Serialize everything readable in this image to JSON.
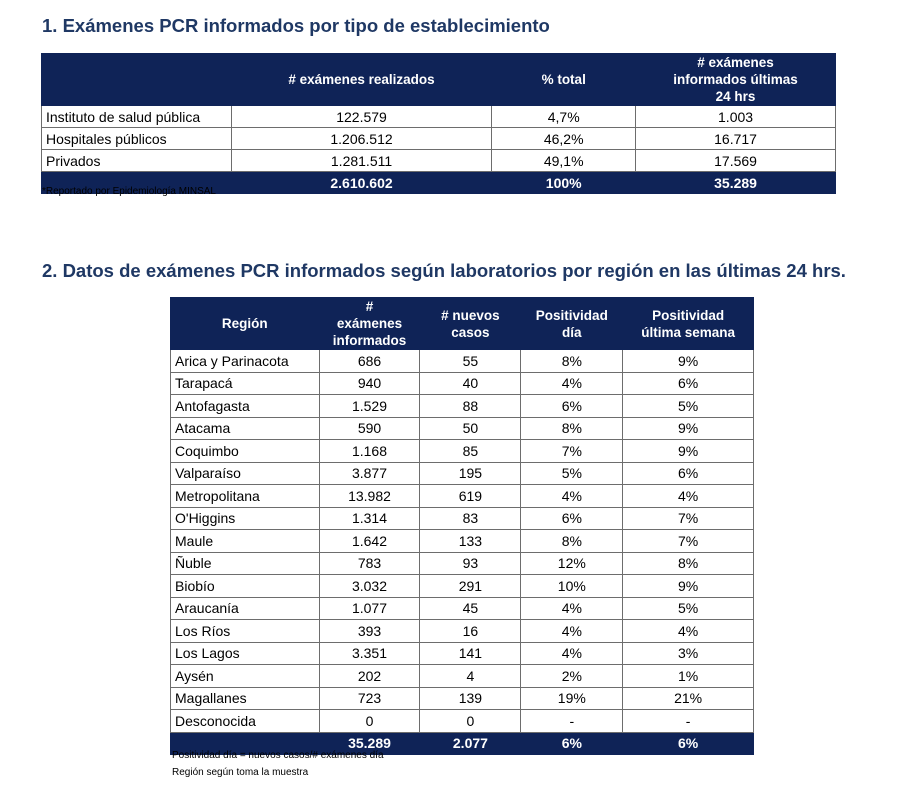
{
  "section1": {
    "title": "1.  Exámenes PCR informados por tipo de establecimiento",
    "headers": [
      "",
      "# exámenes realizados",
      "% total",
      "# exámenes informados últimas 24 hrs"
    ],
    "rows": [
      {
        "label": "Instituto de salud pública",
        "realizados": "122.579",
        "pct": "4,7%",
        "ultimas24": "1.003"
      },
      {
        "label": "Hospitales públicos",
        "realizados": "1.206.512",
        "pct": "46,2%",
        "ultimas24": "16.717"
      },
      {
        "label": "Privados",
        "realizados": "1.281.511",
        "pct": "49,1%",
        "ultimas24": "17.569"
      }
    ],
    "total": {
      "label": "",
      "realizados": "2.610.602",
      "pct": "100%",
      "ultimas24": "35.289"
    },
    "note": "*Reportado por Epidemiología MINSAL"
  },
  "section2": {
    "title": "2.  Datos de exámenes PCR informados según laboratorios por región en las últimas 24 hrs.",
    "headers": [
      "Región",
      "# exámenes informados",
      "# nuevos casos",
      "Positividad día",
      "Positividad última semana"
    ],
    "rows": [
      {
        "region": "Arica y Parinacota",
        "examenes": "686",
        "casos": "55",
        "pos_dia": "8%",
        "pos_semana": "9%"
      },
      {
        "region": "Tarapacá",
        "examenes": "940",
        "casos": "40",
        "pos_dia": "4%",
        "pos_semana": "6%"
      },
      {
        "region": "Antofagasta",
        "examenes": "1.529",
        "casos": "88",
        "pos_dia": "6%",
        "pos_semana": "5%"
      },
      {
        "region": "Atacama",
        "examenes": "590",
        "casos": "50",
        "pos_dia": "8%",
        "pos_semana": "9%"
      },
      {
        "region": "Coquimbo",
        "examenes": "1.168",
        "casos": "85",
        "pos_dia": "7%",
        "pos_semana": "9%"
      },
      {
        "region": "Valparaíso",
        "examenes": "3.877",
        "casos": "195",
        "pos_dia": "5%",
        "pos_semana": "6%"
      },
      {
        "region": "Metropolitana",
        "examenes": "13.982",
        "casos": "619",
        "pos_dia": "4%",
        "pos_semana": "4%"
      },
      {
        "region": "O'Higgins",
        "examenes": "1.314",
        "casos": "83",
        "pos_dia": "6%",
        "pos_semana": "7%"
      },
      {
        "region": "Maule",
        "examenes": "1.642",
        "casos": "133",
        "pos_dia": "8%",
        "pos_semana": "7%"
      },
      {
        "region": "Ñuble",
        "examenes": "783",
        "casos": "93",
        "pos_dia": "12%",
        "pos_semana": "8%"
      },
      {
        "region": "Biobío",
        "examenes": "3.032",
        "casos": "291",
        "pos_dia": "10%",
        "pos_semana": "9%"
      },
      {
        "region": "Araucanía",
        "examenes": "1.077",
        "casos": "45",
        "pos_dia": "4%",
        "pos_semana": "5%"
      },
      {
        "region": "Los Ríos",
        "examenes": "393",
        "casos": "16",
        "pos_dia": "4%",
        "pos_semana": "4%"
      },
      {
        "region": "Los Lagos",
        "examenes": "3.351",
        "casos": "141",
        "pos_dia": "4%",
        "pos_semana": "3%"
      },
      {
        "region": "Aysén",
        "examenes": "202",
        "casos": "4",
        "pos_dia": "2%",
        "pos_semana": "1%"
      },
      {
        "region": "Magallanes",
        "examenes": "723",
        "casos": "139",
        "pos_dia": "19%",
        "pos_semana": "21%"
      },
      {
        "region": "Desconocida",
        "examenes": "0",
        "casos": "0",
        "pos_dia": "-",
        "pos_semana": "-"
      }
    ],
    "total": {
      "region": "",
      "examenes": "35.289",
      "casos": "2.077",
      "pos_dia": "6%",
      "pos_semana": "6%"
    },
    "notes": [
      "Positividad día = nuevos casos/# exámenes día",
      "Región según toma la muestra"
    ]
  }
}
